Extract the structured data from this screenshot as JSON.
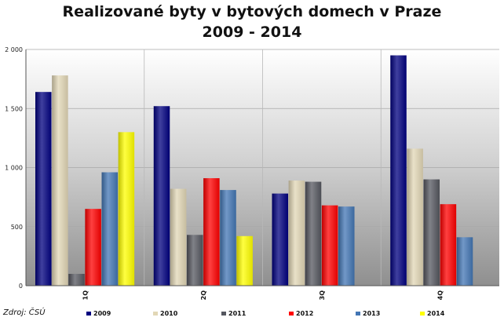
{
  "chart_data": {
    "type": "bar",
    "title_line1": "Realizované byty v bytových domech v Praze",
    "title_line2": "2009 - 2014",
    "categories": [
      "1Q",
      "2Q",
      "3Q",
      "4Q"
    ],
    "series": [
      {
        "name": "2009",
        "color": "#00007f",
        "values": [
          1640,
          1520,
          780,
          1950
        ]
      },
      {
        "name": "2010",
        "color": "#e2d7b6",
        "values": [
          1780,
          820,
          890,
          1160
        ]
      },
      {
        "name": "2011",
        "color": "#55575f",
        "values": [
          100,
          430,
          880,
          900
        ]
      },
      {
        "name": "2012",
        "color": "#ff0000",
        "values": [
          650,
          910,
          680,
          690
        ]
      },
      {
        "name": "2013",
        "color": "#4376b4",
        "values": [
          960,
          810,
          670,
          410
        ]
      },
      {
        "name": "2014",
        "color": "#ffff00",
        "values": [
          1300,
          420,
          null,
          null
        ]
      }
    ],
    "yticks": [
      "0",
      "500",
      "1 000",
      "1 500",
      "2 000"
    ],
    "ylim": [
      0,
      2000
    ],
    "grid": true,
    "legend_position": "bottom"
  },
  "source": "Zdroj: ČSÚ"
}
